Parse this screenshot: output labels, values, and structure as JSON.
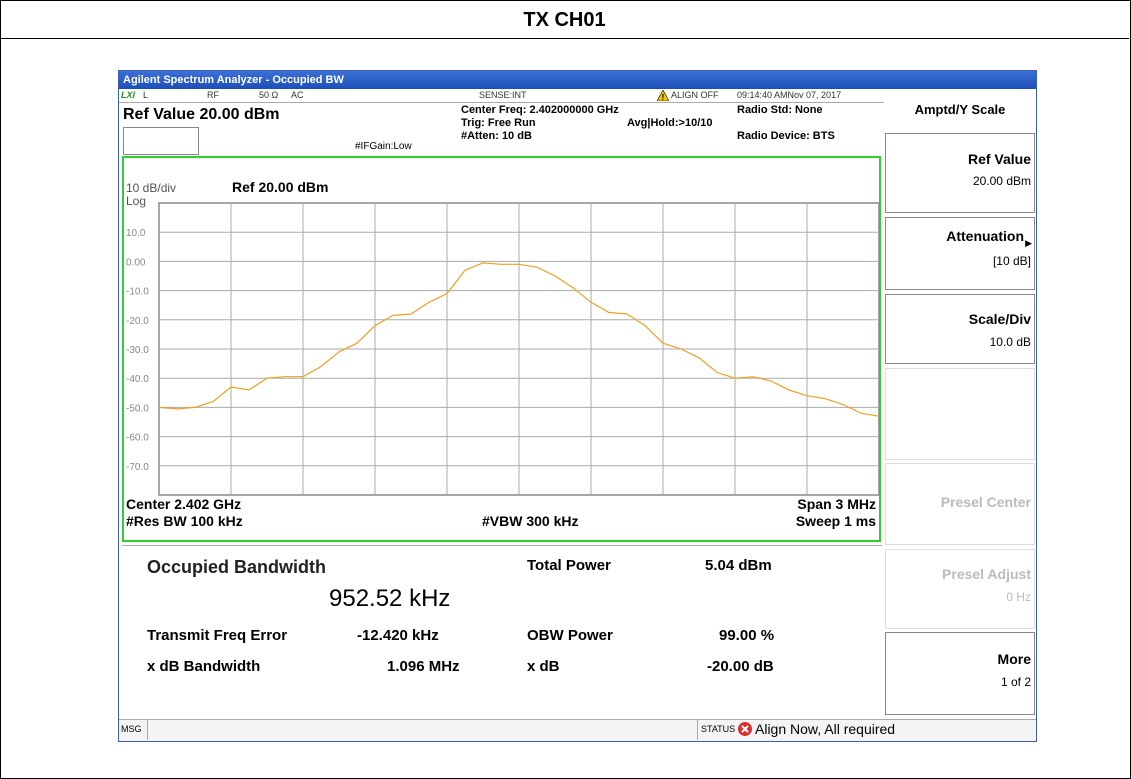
{
  "header": {
    "title": "TX CH01"
  },
  "window": {
    "title": "Agilent Spectrum Analyzer - Occupied BW",
    "status_row": [
      "LXI",
      "L",
      "RF",
      "50 Ω",
      "AC",
      "SENSE:INT",
      "ALIGN OFF",
      "09:14:40 AMNov 07, 2017"
    ],
    "ref_value": "Ref Value  20.00 dBm",
    "settings": [
      "Center Freq: 2.402000000 GHz",
      "Trig: Free Run",
      "Avg|Hold:>10/10",
      "#Atten: 10 dB",
      "#IFGain:Low",
      "Radio Std: None",
      "Radio Device: BTS"
    ]
  },
  "chart_data": {
    "type": "line",
    "scale_label": "10 dB/div",
    "log_label": "Log",
    "ref_label": "Ref 20.00 dBm",
    "footer": {
      "center": "Center 2.402 GHz",
      "span": "Span 3 MHz",
      "rbw": "#Res BW 100 kHz",
      "vbw": "#VBW 300 kHz",
      "sweep": "Sweep  1 ms"
    },
    "color": "#f0a020",
    "ylim": [
      -80,
      20
    ],
    "yticks": [
      {
        "value": 10,
        "label": "10.0"
      },
      {
        "value": 0,
        "label": "0.00"
      },
      {
        "value": -10,
        "label": "-10.0"
      },
      {
        "value": -20,
        "label": "-20.0"
      },
      {
        "value": -30,
        "label": "-30.0"
      },
      {
        "value": -40,
        "label": "-40.0"
      },
      {
        "value": -50,
        "label": "-50.0"
      },
      {
        "value": -60,
        "label": "-60.0"
      },
      {
        "value": -70,
        "label": "-70.0"
      }
    ],
    "grid": true,
    "values": [
      -50,
      -50.5,
      -50,
      -48,
      -43,
      -44,
      -40,
      -39.5,
      -39.5,
      -36,
      -31,
      -28,
      -22,
      -18.5,
      -18,
      -14,
      -11,
      -3,
      -0.5,
      -1,
      -1,
      -2,
      -5,
      -9,
      -14,
      -17.5,
      -18,
      -22,
      -28,
      -30,
      -33,
      -38,
      -40,
      -39.5,
      -41,
      -44,
      -46,
      -47,
      -49,
      -52,
      -53
    ]
  },
  "results": {
    "obw_label": "Occupied Bandwidth",
    "obw_value": "952.52 kHz",
    "total_power_label": "Total Power",
    "total_power_value": "5.04 dBm",
    "freq_error_label": "Transmit Freq Error",
    "freq_error_value": "-12.420 kHz",
    "obw_power_label": "OBW Power",
    "obw_power_value": "99.00 %",
    "xdb_bw_label": "x dB Bandwidth",
    "xdb_bw_value": "1.096 MHz",
    "xdb_label": "x dB",
    "xdb_value": "-20.00 dB"
  },
  "softkeys": {
    "menu": "Amptd/Y Scale",
    "keys": [
      {
        "label": "Ref Value",
        "value": "20.00 dBm"
      },
      {
        "label": "Attenuation",
        "value": "[10 dB]"
      },
      {
        "label": "Scale/Div",
        "value": "10.0 dB"
      },
      {
        "label": "Presel Center"
      },
      {
        "label": "Presel Adjust",
        "value": "0 Hz"
      },
      {
        "label": "More",
        "value": "1 of 2"
      }
    ]
  },
  "status_bar": {
    "msg": "MSG",
    "status": "STATUS",
    "message": "Align Now, All required"
  }
}
